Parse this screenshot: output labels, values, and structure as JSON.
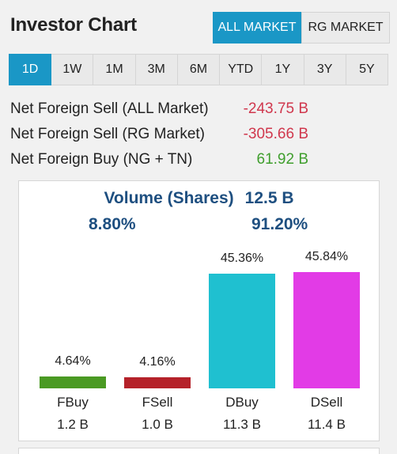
{
  "header": {
    "title": "Investor Chart",
    "market_options": [
      {
        "label": "ALL MARKET",
        "active": true
      },
      {
        "label": "RG MARKET",
        "active": false
      }
    ]
  },
  "periods": [
    {
      "label": "1D",
      "active": true
    },
    {
      "label": "1W",
      "active": false
    },
    {
      "label": "1M",
      "active": false
    },
    {
      "label": "3M",
      "active": false
    },
    {
      "label": "6M",
      "active": false
    },
    {
      "label": "YTD",
      "active": false
    },
    {
      "label": "1Y",
      "active": false
    },
    {
      "label": "3Y",
      "active": false
    },
    {
      "label": "5Y",
      "active": false
    }
  ],
  "stats": [
    {
      "label": "Net Foreign Sell (ALL Market)",
      "value": "-243.75 B",
      "tone": "neg"
    },
    {
      "label": "Net Foreign Sell (RG Market)",
      "value": "-305.66 B",
      "tone": "neg"
    },
    {
      "label": "Net Foreign Buy (NG + TN)",
      "value": "61.92 B",
      "tone": "pos"
    }
  ],
  "volume": {
    "label": "Volume (Shares)",
    "total": "12.5 B",
    "foreign_pct": "8.80%",
    "domestic_pct": "91.20%"
  },
  "colors": {
    "accent": "#1a97c6",
    "fbuy": "#4a9a23",
    "fsell": "#b5222a",
    "dbuy": "#1fc0d0",
    "dsell": "#e23be6",
    "negative": "#d0374d",
    "positive": "#3f9e2d",
    "heading": "#1e4f80"
  },
  "chart_data": {
    "type": "bar",
    "categories": [
      "FBuy",
      "FSell",
      "DBuy",
      "DSell"
    ],
    "values": [
      4.64,
      4.16,
      45.36,
      45.84
    ],
    "value_labels": [
      "4.64%",
      "4.16%",
      "45.36%",
      "45.84%"
    ],
    "volumes": [
      "1.2 B",
      "1.0 B",
      "11.3 B",
      "11.4 B"
    ],
    "ylim": [
      0,
      50
    ],
    "grid": false
  }
}
